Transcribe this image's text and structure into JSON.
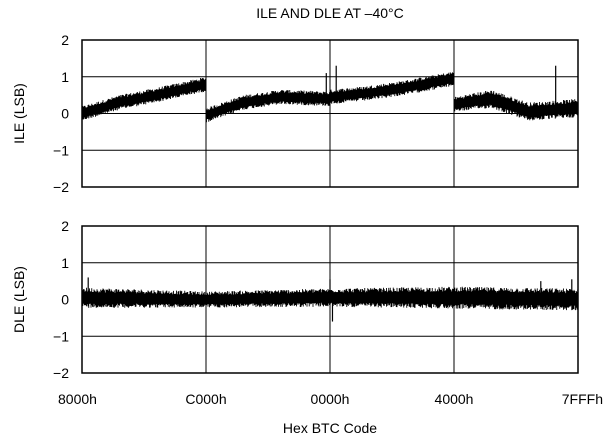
{
  "chart_data": {
    "type": "line",
    "title": "ILE AND DLE AT –40°C",
    "xlabel": "Hex BTC Code",
    "x_ticks": [
      "8000h",
      "C000h",
      "0000h",
      "4000h",
      "7FFFh"
    ],
    "grid": true,
    "legend": "none",
    "colors": {
      "line": "#000000",
      "grid": "#000000",
      "background": "#ffffff"
    },
    "panels": [
      {
        "name": "ile",
        "ylabel": "ILE (LSB)",
        "ylim": [
          -2,
          2
        ],
        "y_ticks": [
          "2",
          "1",
          "0",
          "−1",
          "−2"
        ],
        "y_tick_values": [
          2,
          1,
          0,
          -1,
          -2
        ],
        "band_x": [
          0.0,
          0.3,
          0.6,
          1.0,
          1.0,
          1.3,
          1.6,
          2.0,
          2.0,
          2.3,
          2.6,
          3.0,
          3.0,
          3.3,
          3.6,
          4.0
        ],
        "band_center": [
          0.0,
          0.3,
          0.5,
          0.8,
          -0.05,
          0.3,
          0.45,
          0.4,
          0.45,
          0.55,
          0.7,
          0.95,
          0.25,
          0.4,
          0.05,
          0.15
        ],
        "band_halfwidth": [
          0.2,
          0.2,
          0.2,
          0.2,
          0.2,
          0.2,
          0.2,
          0.2,
          0.2,
          0.2,
          0.2,
          0.2,
          0.2,
          0.25,
          0.25,
          0.25
        ],
        "spikes": [
          [
            1.97,
            1.1
          ],
          [
            2.05,
            1.3
          ],
          [
            3.82,
            1.3
          ]
        ]
      },
      {
        "name": "dle",
        "ylabel": "DLE (LSB)",
        "ylim": [
          -2,
          2
        ],
        "y_ticks": [
          "2",
          "1",
          "0",
          "−1",
          "−2"
        ],
        "y_tick_values": [
          2,
          1,
          0,
          -1,
          -2
        ],
        "band_x": [
          0.0,
          1.0,
          2.0,
          3.0,
          4.0
        ],
        "band_center": [
          0.05,
          0.0,
          0.05,
          0.05,
          0.0
        ],
        "band_halfwidth": [
          0.28,
          0.22,
          0.25,
          0.3,
          0.3
        ],
        "spikes": [
          [
            0.05,
            0.6
          ],
          [
            2.0,
            0.55
          ],
          [
            2.02,
            -0.6
          ],
          [
            3.7,
            0.5
          ],
          [
            3.95,
            0.55
          ]
        ]
      }
    ]
  }
}
